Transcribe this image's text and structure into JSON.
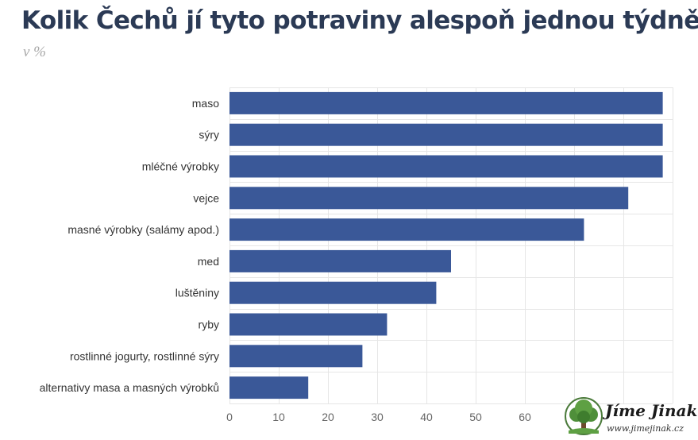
{
  "header": {
    "title": "Kolik Čechů jí tyto potraviny alespoň jednou týdně",
    "subtitle": "v %"
  },
  "chart_data": {
    "type": "bar",
    "orientation": "horizontal",
    "categories": [
      "maso",
      "sýry",
      "mléčné výrobky",
      "vejce",
      "masné výrobky (salámy apod.)",
      "med",
      "luštěniny",
      "ryby",
      "rostlinné jogurty, rostlinné sýry",
      "alternativy masa a masných výrobků"
    ],
    "values": [
      88,
      88,
      88,
      81,
      72,
      45,
      42,
      32,
      27,
      16
    ],
    "xticks": [
      "0",
      "10",
      "20",
      "30",
      "40",
      "50",
      "60"
    ],
    "xlim": [
      0,
      90
    ],
    "grid": true,
    "bar_color": "#3a5898"
  },
  "logo": {
    "name": "Jíme Jinak",
    "url": "www.jimejinak.cz"
  }
}
